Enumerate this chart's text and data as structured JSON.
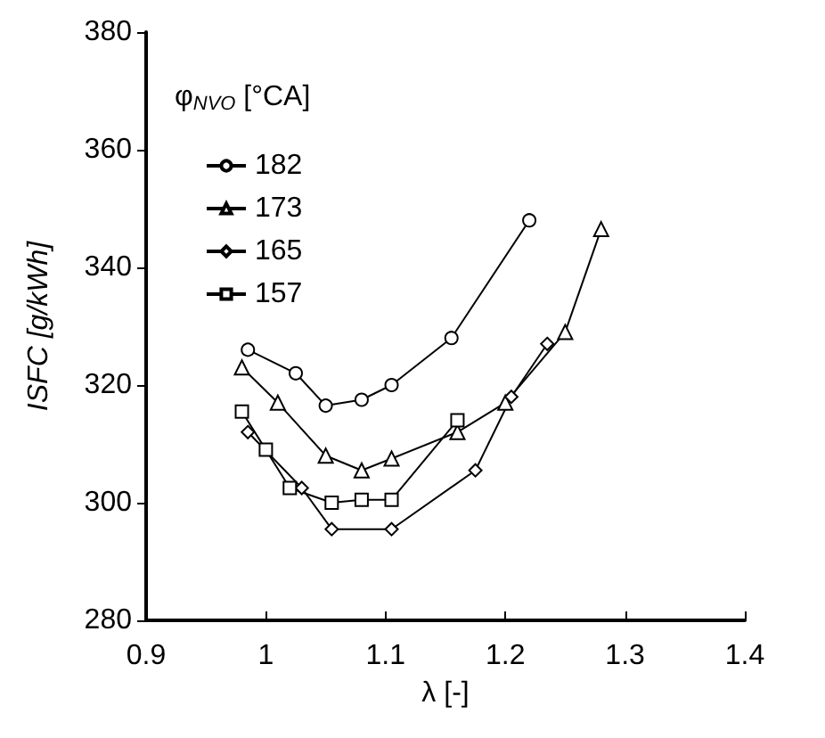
{
  "chart_data": {
    "type": "line",
    "xlabel": "λ [-]",
    "ylabel": "ISFC [g/kWh]",
    "legend_title": "φ$_{NVO}$ [°CA]",
    "xlim": [
      0.9,
      1.4
    ],
    "xticks": [
      0.9,
      1,
      1.1,
      1.2,
      1.3,
      1.4
    ],
    "ylim": [
      280,
      380
    ],
    "yticks": [
      280,
      300,
      320,
      340,
      360,
      380
    ],
    "grid": false,
    "legend": "top left",
    "line_style": "solid",
    "series": [
      {
        "name": "182",
        "color": "#000000",
        "marker": "circle",
        "x": [
          0.985,
          1.025,
          1.05,
          1.08,
          1.105,
          1.155,
          1.22
        ],
        "values": [
          326,
          322,
          316.5,
          317.5,
          320,
          328,
          348
        ]
      },
      {
        "name": "173",
        "color": "#000000",
        "marker": "triangle",
        "x": [
          0.98,
          1.01,
          1.05,
          1.08,
          1.105,
          1.16,
          1.2,
          1.25,
          1.28
        ],
        "values": [
          323,
          317,
          308,
          305.5,
          307.5,
          312,
          317,
          329,
          346.5
        ]
      },
      {
        "name": "165",
        "color": "#000000",
        "marker": "diamond",
        "x": [
          0.985,
          1.03,
          1.055,
          1.105,
          1.175,
          1.205,
          1.235
        ],
        "values": [
          312,
          302.5,
          295.5,
          295.5,
          305.5,
          318,
          327
        ]
      },
      {
        "name": "157",
        "color": "#000000",
        "marker": "square",
        "x": [
          0.98,
          1.0,
          1.02,
          1.055,
          1.08,
          1.105,
          1.16
        ],
        "values": [
          315.5,
          309,
          302.5,
          300,
          300.5,
          300.5,
          314
        ]
      }
    ]
  }
}
